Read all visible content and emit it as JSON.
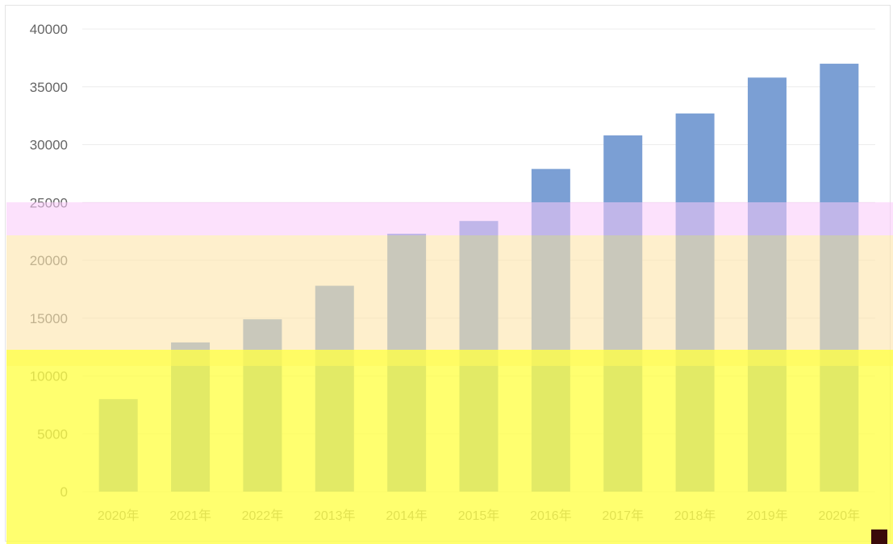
{
  "chart_data": {
    "type": "bar",
    "title": "",
    "xlabel": "",
    "ylabel": "",
    "categories": [
      "2020年",
      "2021年",
      "2022年",
      "2013年",
      "2014年",
      "2015年",
      "2016年",
      "2017年",
      "2018年",
      "2019年",
      "2020年"
    ],
    "values": [
      8000,
      12900,
      14900,
      17800,
      22300,
      23400,
      27900,
      30800,
      32700,
      35800,
      37000
    ],
    "y_ticks": [
      "0",
      "5000",
      "10000",
      "15000",
      "20000",
      "25000",
      "30000",
      "35000",
      "40000"
    ],
    "ylim": [
      0,
      40000
    ],
    "grid": true,
    "legend": "none"
  },
  "colors": {
    "bar": "#7b9fd4",
    "gridline": "#ececec",
    "overlay_pink": "#fbe1fb",
    "overlay_peach": "#fdebc2",
    "overlay_yellow": "#ffff66"
  }
}
